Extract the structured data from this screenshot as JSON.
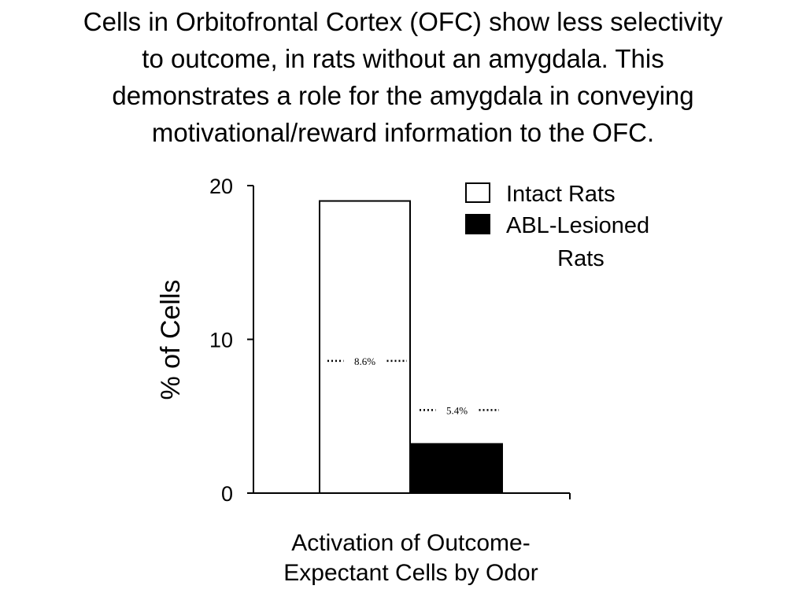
{
  "slide": {
    "title_lines": [
      "Cells in Orbitofrontal Cortex (OFC) show less selectivity",
      "to outcome, in rats without an amygdala. This",
      "demonstrates a role for the amygdala in conveying",
      "motivational/reward information to the OFC."
    ]
  },
  "chart_data": {
    "type": "bar",
    "ylabel": "% of Cells",
    "xlabel_lines": [
      "Activation of Outcome-",
      "Expectant Cells by Odor"
    ],
    "ylim": [
      0,
      20
    ],
    "yticks": [
      0,
      10,
      20
    ],
    "grid": false,
    "legend_position": "top-right",
    "legend": [
      {
        "label_lines": [
          "Intact Rats"
        ],
        "fill": "#ffffff"
      },
      {
        "label_lines": [
          "ABL-Lesioned",
          "Rats"
        ],
        "fill": "#000000"
      }
    ],
    "series": [
      {
        "name": "Intact Rats",
        "values": [
          19
        ],
        "color": "#ffffff",
        "chance_level": 8.6,
        "chance_label": "8.6%"
      },
      {
        "name": "ABL-Lesioned Rats",
        "values": [
          3.2
        ],
        "color": "#000000",
        "chance_level": 5.4,
        "chance_label": "5.4%"
      }
    ]
  }
}
